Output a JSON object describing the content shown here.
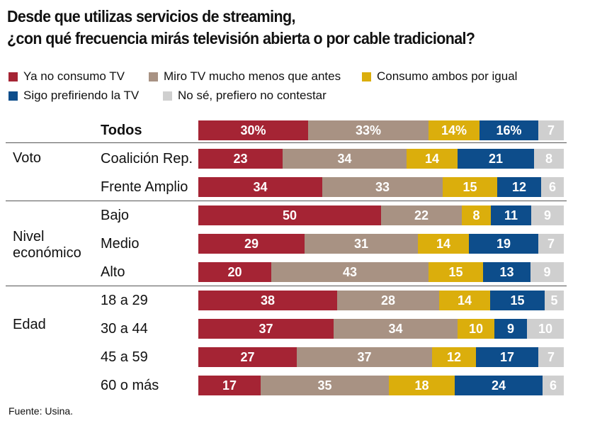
{
  "title_lines": [
    "Desde que utilizas servicios de streaming,",
    "¿con qué frecuencia mirás televisión abierta o por cable tradicional?"
  ],
  "legend": [
    {
      "label": "Ya no consumo TV",
      "color": "#a52434"
    },
    {
      "label": "Miro TV mucho menos que antes",
      "color": "#a89283"
    },
    {
      "label": "Consumo ambos por igual",
      "color": "#dbae0c"
    },
    {
      "label": "Sigo prefiriendo la TV",
      "color": "#0d4d8b"
    },
    {
      "label": "No sé, prefiero no contestar",
      "color": "#cfcfcf"
    }
  ],
  "groups": [
    {
      "label": "Voto"
    },
    {
      "label": "Nivel económico"
    },
    {
      "label": "Edad"
    }
  ],
  "chart_data": {
    "type": "bar",
    "orientation": "horizontal",
    "stacked": true,
    "normalized": true,
    "title": "Desde que utilizas servicios de streaming, ¿con qué frecuencia mirás televisión abierta o por cable tradicional?",
    "unit": "%",
    "series_names": [
      "Ya no consumo TV",
      "Miro TV mucho menos que antes",
      "Consumo ambos por igual",
      "Sigo prefiriendo la TV",
      "No sé, prefiero no contestar"
    ],
    "rows": [
      {
        "label": "Todos",
        "group": "",
        "values": [
          30,
          33,
          14,
          16,
          7
        ],
        "display": [
          "30%",
          "33%",
          "14%",
          "16%",
          "7"
        ]
      },
      {
        "label": "Coalición Rep.",
        "group": "Voto",
        "values": [
          23,
          34,
          14,
          21,
          8
        ],
        "display": [
          "23",
          "34",
          "14",
          "21",
          "8"
        ]
      },
      {
        "label": "Frente Amplio",
        "group": "Voto",
        "values": [
          34,
          33,
          15,
          12,
          6
        ],
        "display": [
          "34",
          "33",
          "15",
          "12",
          "6"
        ]
      },
      {
        "label": "Bajo",
        "group": "Nivel económico",
        "values": [
          50,
          22,
          8,
          11,
          9
        ],
        "display": [
          "50",
          "22",
          "8",
          "11",
          "9"
        ]
      },
      {
        "label": "Medio",
        "group": "Nivel económico",
        "values": [
          29,
          31,
          14,
          19,
          7
        ],
        "display": [
          "29",
          "31",
          "14",
          "19",
          "7"
        ]
      },
      {
        "label": "Alto",
        "group": "Nivel económico",
        "values": [
          20,
          43,
          15,
          13,
          9
        ],
        "display": [
          "20",
          "43",
          "15",
          "13",
          "9"
        ]
      },
      {
        "label": "18 a 29",
        "group": "Edad",
        "values": [
          38,
          28,
          14,
          15,
          5
        ],
        "display": [
          "38",
          "28",
          "14",
          "15",
          "5"
        ]
      },
      {
        "label": "30 a 44",
        "group": "Edad",
        "values": [
          37,
          34,
          10,
          9,
          10
        ],
        "display": [
          "37",
          "34",
          "10",
          "9",
          "10"
        ]
      },
      {
        "label": "45 a 59",
        "group": "Edad",
        "values": [
          27,
          37,
          12,
          17,
          7
        ],
        "display": [
          "27",
          "37",
          "12",
          "17",
          "7"
        ]
      },
      {
        "label": "60 o más",
        "group": "Edad",
        "values": [
          17,
          35,
          18,
          24,
          6
        ],
        "display": [
          "17",
          "35",
          "18",
          "24",
          "6"
        ]
      }
    ]
  },
  "source": "Fuente: Usina."
}
